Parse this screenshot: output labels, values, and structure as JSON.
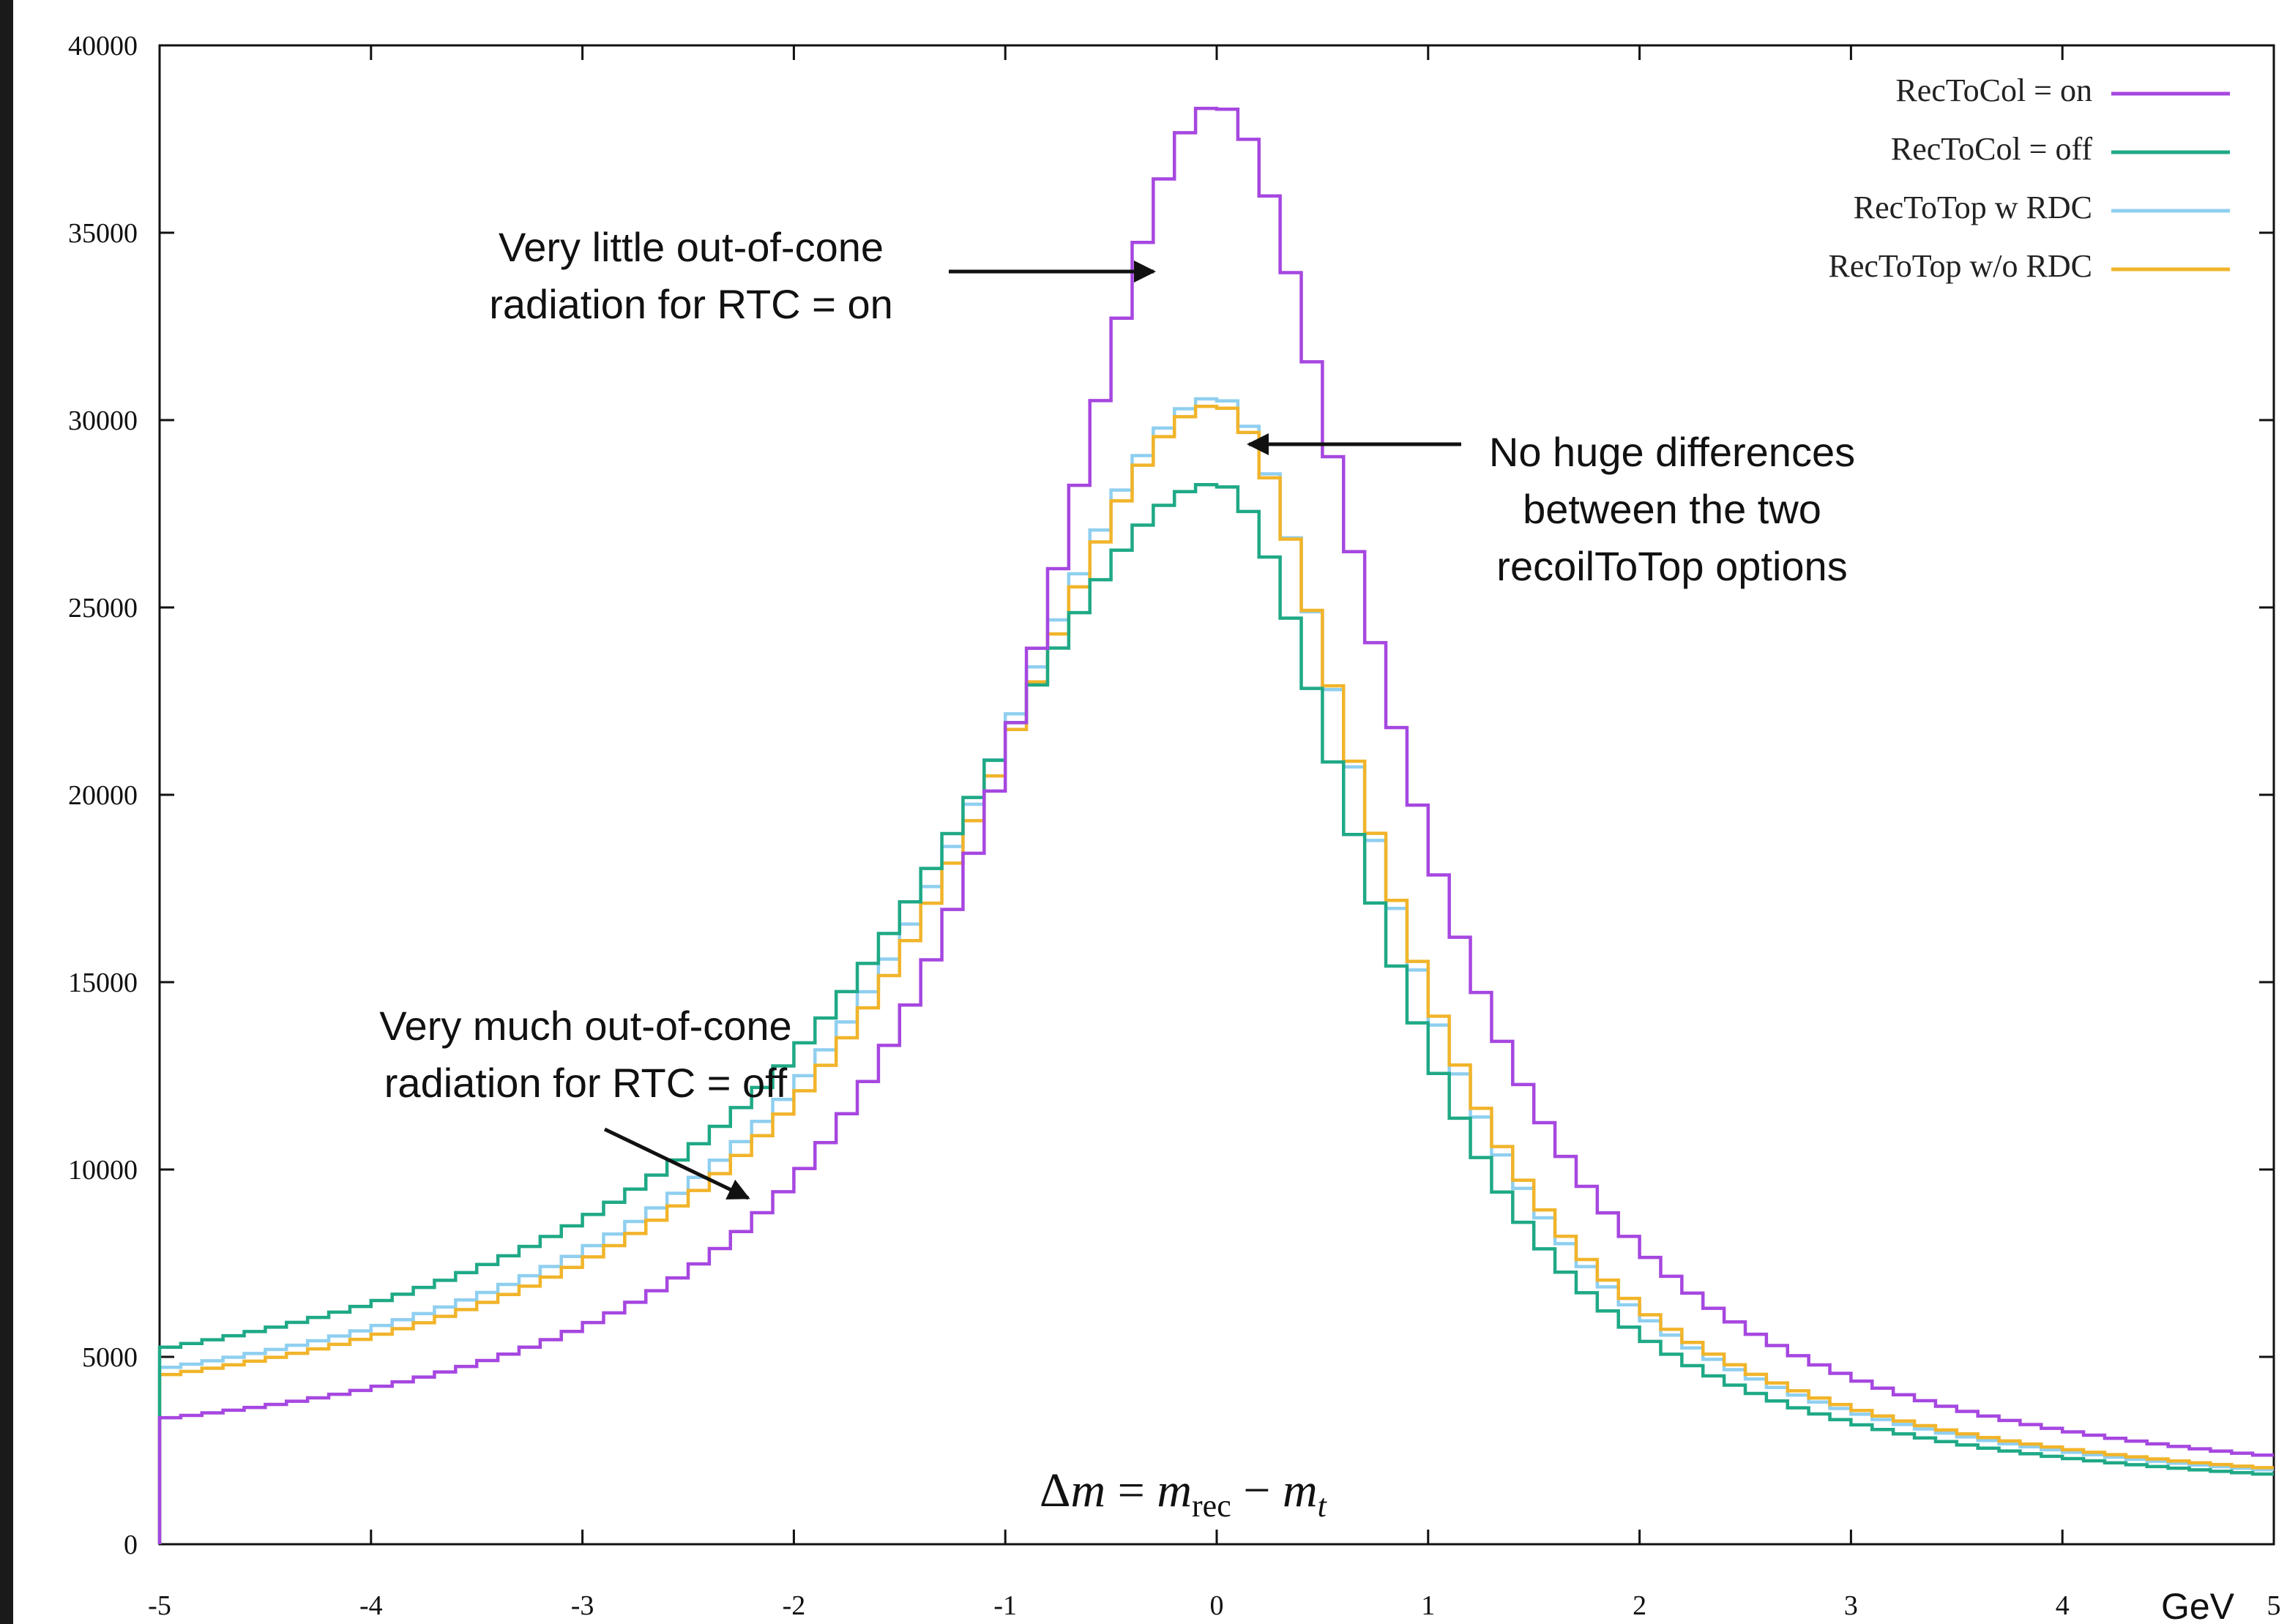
{
  "chart_data": {
    "type": "line",
    "xlim": [
      -5,
      5
    ],
    "ylim": [
      0,
      40000
    ],
    "x_ticks": [
      "-5",
      "-4",
      "-3",
      "-2",
      "-1",
      "0",
      "1",
      "2",
      "3",
      "4",
      "5"
    ],
    "y_ticks": [
      "0",
      "5000",
      "10000",
      "15000",
      "20000",
      "25000",
      "30000",
      "35000",
      "40000"
    ],
    "xlabel": "Δm = m_rec − m_t",
    "xlabel_parts": {
      "pre": "Δ",
      "m1": "m",
      "eq": " = ",
      "m2": "m",
      "sub1": "rec",
      "minus": " − ",
      "m3": "m",
      "sub2": "t"
    },
    "x_unit": "GeV",
    "legend_position": "top-right",
    "bin_width": 0.1,
    "series": [
      {
        "name": "RecToCol = on",
        "color": "#a647e0",
        "peak_y": 38400,
        "left_tail_y": 1800,
        "right_tail_y": 1050,
        "left_width": 1.05,
        "right_width": 0.95
      },
      {
        "name": "RecToCol = off",
        "color": "#1fa986",
        "peak_y": 28300,
        "left_tail_y": 2700,
        "right_tail_y": 1000,
        "left_width": 1.65,
        "right_width": 0.9
      },
      {
        "name": "RecToTop w RDC",
        "color": "#8fcff0",
        "peak_y": 30600,
        "left_tail_y": 2500,
        "right_tail_y": 1000,
        "left_width": 1.45,
        "right_width": 0.92
      },
      {
        "name": "RecToTop w/o RDC",
        "color": "#f1b42a",
        "peak_y": 30400,
        "left_tail_y": 2400,
        "right_tail_y": 1020,
        "left_width": 1.42,
        "right_width": 0.94
      }
    ],
    "annotations": [
      {
        "lines": [
          "Very little out-of-cone",
          "radiation for RTC = on"
        ]
      },
      {
        "lines": [
          "No huge differences",
          "between the two",
          "recoilToTop options"
        ]
      },
      {
        "lines": [
          "Very much out-of-cone",
          "radiation for RTC = off"
        ]
      }
    ]
  }
}
